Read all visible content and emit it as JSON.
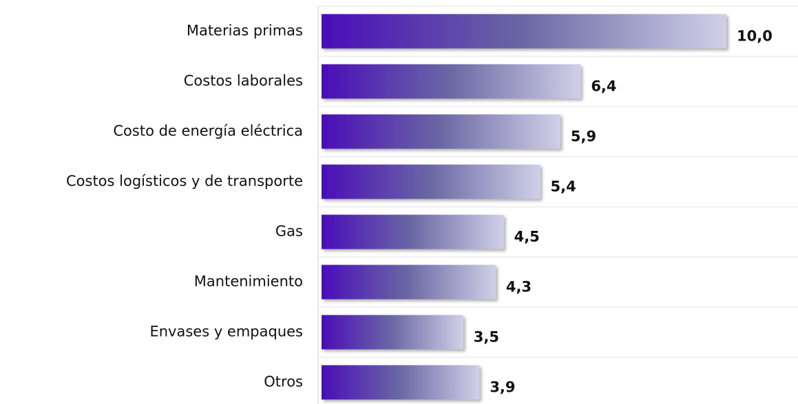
{
  "chart_data": {
    "type": "bar",
    "orientation": "horizontal",
    "categories": [
      "Materias primas",
      "Costos laborales",
      "Costo de energía eléctrica",
      "Costos logísticos y de transporte",
      "Gas",
      "Mantenimiento",
      "Envases y empaques",
      "Otros"
    ],
    "values": [
      10.0,
      6.4,
      5.9,
      5.4,
      4.5,
      4.3,
      3.5,
      3.9
    ],
    "value_labels": [
      "10,0",
      "6,4",
      "5,9",
      "5,4",
      "4,5",
      "4,3",
      "3,5",
      "3,9"
    ],
    "gradient": [
      "#4a0db8",
      "#6b68a4",
      "#d0d0e8"
    ],
    "grid": true
  }
}
